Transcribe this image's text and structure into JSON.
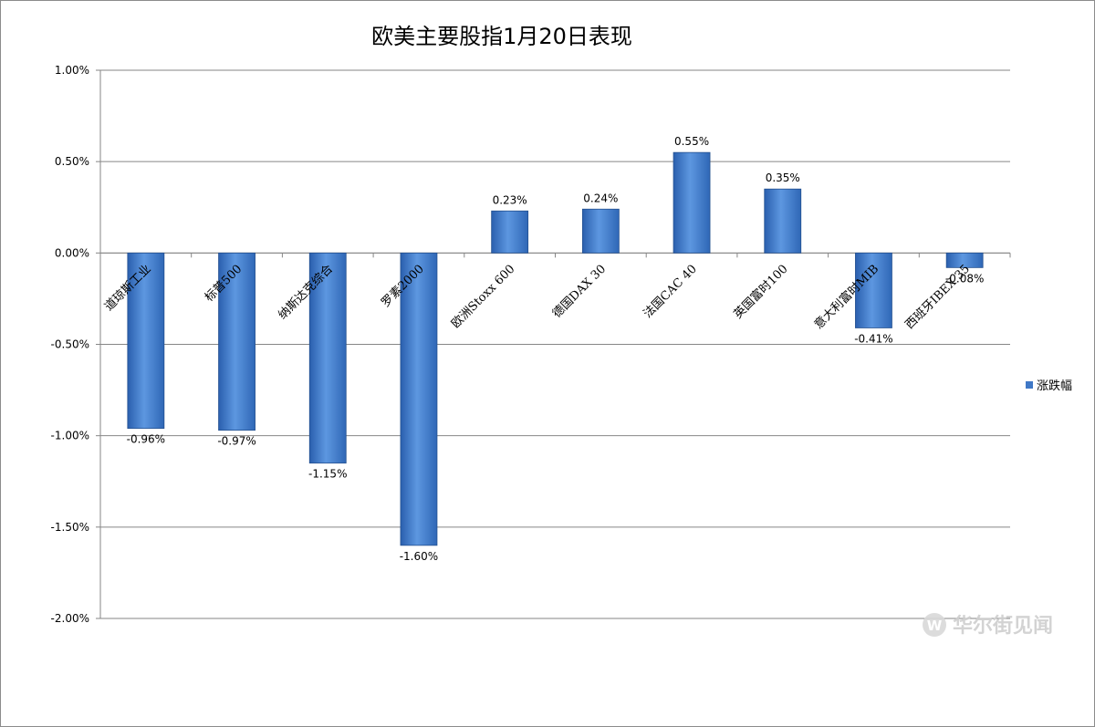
{
  "chart_data": {
    "type": "bar",
    "title": "欧美主要股指1月20日表现",
    "categories": [
      "道琼斯工业",
      "标普500",
      "纳斯达克综合",
      "罗素2000",
      "欧洲Stoxx 600",
      "德国DAX 30",
      "法国CAC 40",
      "英国富时100",
      "意大利富时MIB",
      "西班牙IBEX 35"
    ],
    "series": [
      {
        "name": "涨跌幅",
        "values": [
          -0.96,
          -0.97,
          -1.15,
          -1.6,
          0.23,
          0.24,
          0.55,
          0.35,
          -0.41,
          -0.08
        ],
        "labels": [
          "-0.96%",
          "-0.97%",
          "-1.15%",
          "-1.60%",
          "0.23%",
          "0.24%",
          "0.55%",
          "0.35%",
          "-0.41%",
          "-0.08%"
        ]
      }
    ],
    "ylim": [
      -2.0,
      1.0
    ],
    "yticks": [
      1.0,
      0.5,
      0.0,
      -0.5,
      -1.0,
      -1.5,
      -2.0
    ],
    "ytick_labels": [
      "1.00%",
      "0.50%",
      "0.00%",
      "-0.50%",
      "-1.00%",
      "-1.50%",
      "-2.00%"
    ],
    "grid": true,
    "legend_position": "right",
    "bar_color": "#3f78c6"
  },
  "watermark": {
    "text": "华尔街见闻",
    "logo_letter": "W"
  }
}
